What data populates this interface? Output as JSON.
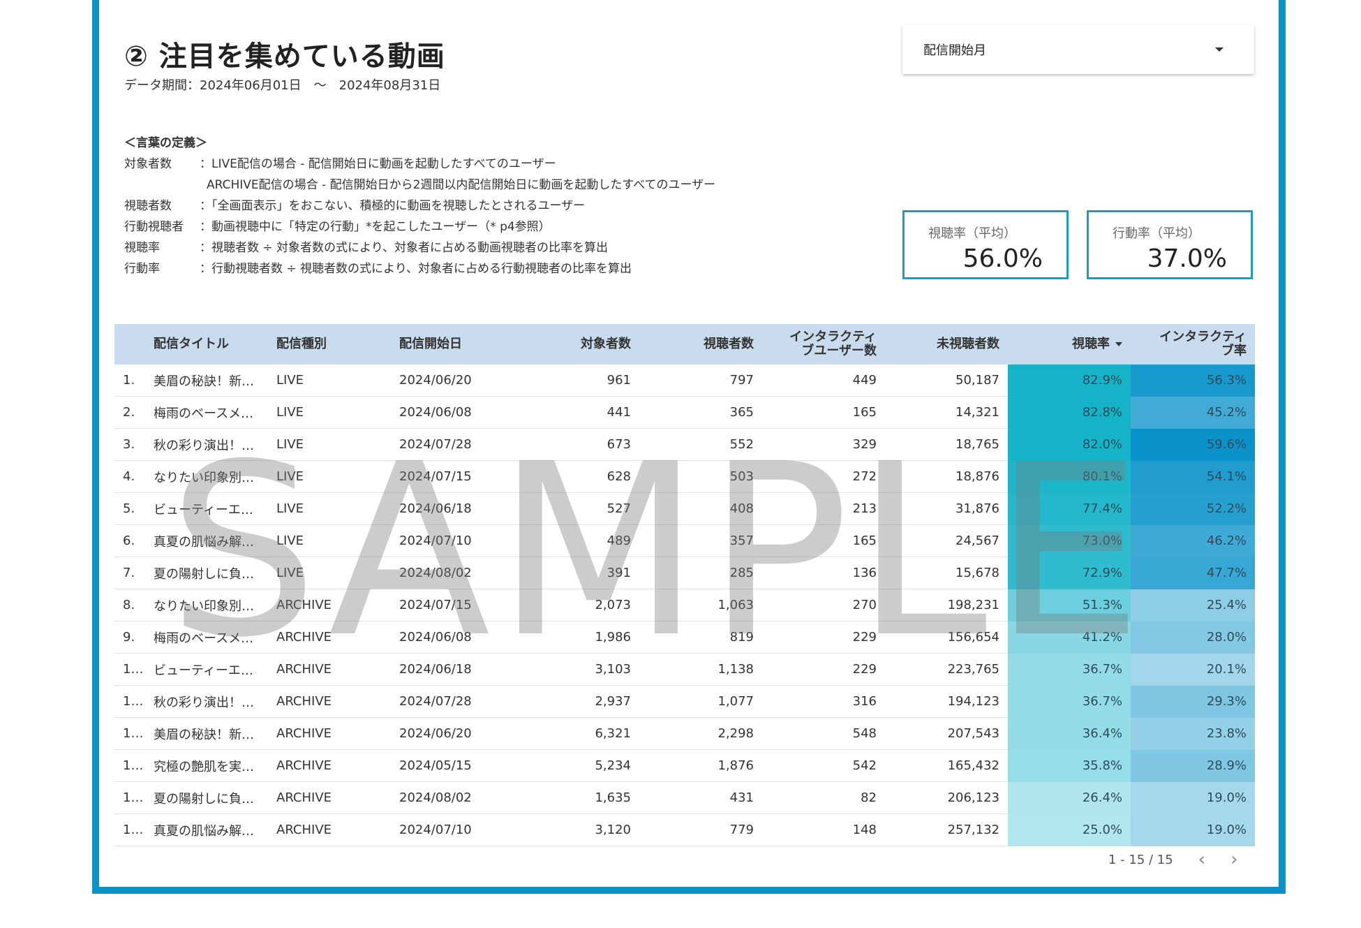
{
  "title": "② 注目を集めている動画",
  "period": "データ期間：2024年06月01日　～　2024年08月31日",
  "dropdown": {
    "label": "配信開始月"
  },
  "definitions": {
    "heading": "＜言葉の定義＞",
    "rows": [
      {
        "term": "対象者数",
        "desc": "：LIVE配信の場合 - 配信開始日に動画を起動したすべてのユーザー"
      },
      {
        "term": "",
        "desc": "ARCHIVE配信の場合 - 配信開始日から2週間以内配信開始日に動画を起動したすべてのユーザー"
      },
      {
        "term": "視聴者数",
        "desc": "：「全画面表示」をおこない、積極的に動画を視聴したとされるユーザー"
      },
      {
        "term": "行動視聴者",
        "desc": "：動画視聴中に「特定の行動」*を起こしたユーザー（* p4参照）"
      },
      {
        "term": "視聴率",
        "desc": "：視聴者数 ÷ 対象者数の式により、対象者に占める動画視聴者の比率を算出"
      },
      {
        "term": "行動率",
        "desc": "：行動視聴者数 ÷ 視聴者数の式により、対象者に占める行動視聴者の比率を算出"
      }
    ]
  },
  "kpis": [
    {
      "label": "視聴率（平均）",
      "value": "56.0%"
    },
    {
      "label": "行動率（平均）",
      "value": "37.0%"
    }
  ],
  "table": {
    "headers": [
      "",
      "配信タイトル",
      "配信種別",
      "配信開始日",
      "対象者数",
      "視聴者数",
      "インタラクティブユーザー数",
      "未視聴者数",
      "視聴率",
      "インタラクティブ率"
    ],
    "header_lines": {
      "interactive_users": [
        "インタラクティ",
        "ブユーザー数"
      ],
      "interactive_rate": [
        "インタラクティ",
        "ブ率"
      ]
    },
    "rows": [
      [
        "1.",
        "美眉の秘訣！新…",
        "LIVE",
        "2024/06/20",
        "961",
        "797",
        "449",
        "50,187",
        "82.9%",
        "56.3%"
      ],
      [
        "2.",
        "梅雨のベースメ…",
        "LIVE",
        "2024/06/08",
        "441",
        "365",
        "165",
        "14,321",
        "82.8%",
        "45.2%"
      ],
      [
        "3.",
        "秋の彩り演出！…",
        "LIVE",
        "2024/07/28",
        "673",
        "552",
        "329",
        "18,765",
        "82.0%",
        "59.6%"
      ],
      [
        "4.",
        "なりたい印象別…",
        "LIVE",
        "2024/07/15",
        "628",
        "503",
        "272",
        "18,876",
        "80.1%",
        "54.1%"
      ],
      [
        "5.",
        "ビューティーエ…",
        "LIVE",
        "2024/06/18",
        "527",
        "408",
        "213",
        "31,876",
        "77.4%",
        "52.2%"
      ],
      [
        "6.",
        "真夏の肌悩み解…",
        "LIVE",
        "2024/07/10",
        "489",
        "357",
        "165",
        "24,567",
        "73.0%",
        "46.2%"
      ],
      [
        "7.",
        "夏の陽射しに負…",
        "LIVE",
        "2024/08/02",
        "391",
        "285",
        "136",
        "15,678",
        "72.9%",
        "47.7%"
      ],
      [
        "8.",
        "なりたい印象別…",
        "ARCHIVE",
        "2024/07/15",
        "2,073",
        "1,063",
        "270",
        "198,231",
        "51.3%",
        "25.4%"
      ],
      [
        "9.",
        "梅雨のベースメ…",
        "ARCHIVE",
        "2024/06/08",
        "1,986",
        "819",
        "229",
        "156,654",
        "41.2%",
        "28.0%"
      ],
      [
        "1…",
        "ビューティーエ…",
        "ARCHIVE",
        "2024/06/18",
        "3,103",
        "1,138",
        "229",
        "223,765",
        "36.7%",
        "20.1%"
      ],
      [
        "1…",
        "秋の彩り演出！…",
        "ARCHIVE",
        "2024/07/28",
        "2,937",
        "1,077",
        "316",
        "194,123",
        "36.7%",
        "29.3%"
      ],
      [
        "1…",
        "美眉の秘訣！新…",
        "ARCHIVE",
        "2024/06/20",
        "6,321",
        "2,298",
        "548",
        "207,543",
        "36.4%",
        "23.8%"
      ],
      [
        "1…",
        "究極の艶肌を実…",
        "ARCHIVE",
        "2024/05/15",
        "5,234",
        "1,876",
        "542",
        "165,432",
        "35.8%",
        "28.9%"
      ],
      [
        "1…",
        "夏の陽射しに負…",
        "ARCHIVE",
        "2024/08/02",
        "1,635",
        "431",
        "82",
        "206,123",
        "26.4%",
        "19.0%"
      ],
      [
        "1…",
        "真夏の肌悩み解…",
        "ARCHIVE",
        "2024/07/10",
        "3,120",
        "779",
        "148",
        "257,132",
        "25.0%",
        "19.0%"
      ]
    ],
    "heat": {
      "view_rate_range": [
        25.0,
        82.9
      ],
      "view_rate_colors": [
        "#b3e7ef",
        "#14b3c8"
      ],
      "interactive_rate_range": [
        19.0,
        59.6
      ],
      "interactive_rate_colors": [
        "#a6d8ec",
        "#0b93c9"
      ]
    }
  },
  "pagination": {
    "text": "1 - 15 / 15",
    "prev_icon": "chevron-left-icon",
    "next_icon": "chevron-right-icon"
  },
  "watermark": "SAMPLE",
  "colors": {
    "frame": "#0b93c9",
    "accent": "#f0620f",
    "header_bg": "#c8dcee",
    "kpi_border": "#1aa0be"
  }
}
